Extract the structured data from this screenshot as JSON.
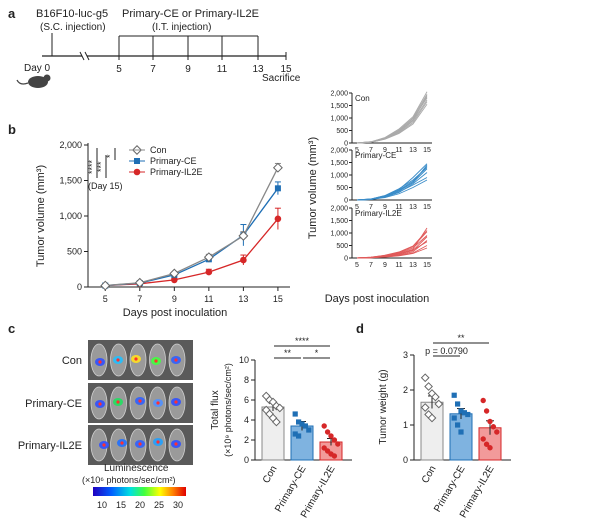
{
  "panels": {
    "a": "a",
    "b": "b",
    "c": "c",
    "d": "d"
  },
  "timeline": {
    "cells": "B16F10-luc-g5",
    "cells_note": "(S.C. injection)",
    "treatment": "Primary-CE or Primary-IL2E",
    "treatment_note": "(I.T. injection)",
    "day_label": "Day 0",
    "days": [
      "5",
      "7",
      "9",
      "11",
      "13",
      "15"
    ],
    "end_label": "Sacrifice"
  },
  "colors": {
    "con": "#888888",
    "ce": "#1f6fb5",
    "il2e": "#d62728",
    "ce_light": "#7fb3e0",
    "il2e_light": "#f29a9a"
  },
  "chart_data": [
    {
      "type": "line",
      "ylabel": "Tumor volume (mm³)",
      "xlabel": "Days post inoculation",
      "x": [
        5,
        7,
        9,
        11,
        13,
        15
      ],
      "ylim": [
        0,
        2000
      ],
      "yticks": [
        "0",
        "500",
        "1,000",
        "1,500",
        "2,000"
      ],
      "series": [
        {
          "name": "Con",
          "values": [
            20,
            60,
            190,
            420,
            720,
            1680
          ],
          "err": [
            5,
            10,
            20,
            40,
            60,
            60
          ]
        },
        {
          "name": "Primary-CE",
          "values": [
            20,
            55,
            170,
            390,
            730,
            1390
          ],
          "err": [
            5,
            10,
            20,
            40,
            150,
            90
          ]
        },
        {
          "name": "Primary-IL2E",
          "values": [
            20,
            45,
            100,
            210,
            380,
            960
          ],
          "err": [
            5,
            10,
            20,
            40,
            70,
            150
          ]
        }
      ],
      "stats": [
        "****",
        "***",
        "*"
      ],
      "stats_note": "(Day 15)",
      "legend": "top-left"
    },
    {
      "type": "line",
      "ylabel": "Tumor volume (mm³)",
      "xlabel": "Days post inoculation",
      "x": [
        5,
        7,
        9,
        11,
        13,
        15
      ],
      "xticks": [
        "5",
        "7",
        "9",
        "11",
        "13",
        "15"
      ],
      "ylim": [
        0,
        2000
      ],
      "yticks": [
        "0",
        "500",
        "1,000",
        "1,500",
        "2,000"
      ],
      "panels": [
        {
          "name": "Con",
          "lines": [
            [
              0,
              40,
              180,
              450,
              900,
              1900
            ],
            [
              0,
              50,
              220,
              560,
              1050,
              2050
            ],
            [
              0,
              30,
              160,
              400,
              820,
              1650
            ],
            [
              0,
              45,
              200,
              500,
              980,
              1800
            ],
            [
              0,
              35,
              150,
              380,
              760,
              1550
            ],
            [
              0,
              40,
              210,
              520,
              1000,
              1950
            ],
            [
              0,
              30,
              170,
              430,
              880,
              1720
            ],
            [
              0,
              50,
              190,
              470,
              930,
              1850
            ]
          ]
        },
        {
          "name": "Primary-CE",
          "lines": [
            [
              0,
              30,
              150,
              380,
              700,
              1400
            ],
            [
              0,
              40,
              180,
              450,
              800,
              1300
            ],
            [
              0,
              20,
              120,
              300,
              650,
              1100
            ],
            [
              0,
              35,
              160,
              420,
              900,
              1450
            ],
            [
              0,
              25,
              140,
              350,
              700,
              1250
            ],
            [
              0,
              30,
              130,
              320,
              600,
              900
            ],
            [
              0,
              40,
              170,
              400,
              750,
              1350
            ],
            [
              0,
              20,
              100,
              250,
              500,
              800
            ]
          ]
        },
        {
          "name": "Primary-IL2E",
          "lines": [
            [
              0,
              20,
              80,
              180,
              350,
              1200
            ],
            [
              0,
              30,
              100,
              220,
              450,
              1050
            ],
            [
              0,
              10,
              60,
              120,
              250,
              700
            ],
            [
              0,
              25,
              90,
              200,
              400,
              900
            ],
            [
              0,
              15,
              70,
              150,
              300,
              850
            ],
            [
              0,
              20,
              50,
              100,
              200,
              500
            ],
            [
              0,
              30,
              110,
              240,
              480,
              1100
            ],
            [
              0,
              10,
              40,
              90,
              180,
              400
            ],
            [
              0,
              20,
              70,
              160,
              320,
              650
            ]
          ]
        }
      ]
    },
    {
      "type": "bar",
      "ylabel": "Total flux",
      "ylabel2": "(×10⁹ photons/sec/cm²)",
      "categories": [
        "Con",
        "Primary-CE",
        "Primary-IL2E"
      ],
      "values": [
        5.3,
        3.4,
        1.8
      ],
      "err": [
        0.4,
        0.45,
        0.35
      ],
      "ylim": [
        0,
        10
      ],
      "yticks": [
        "0",
        "2",
        "4",
        "6",
        "8",
        "10"
      ],
      "points": [
        [
          6.4,
          6.0,
          5.8,
          5.4,
          5.2,
          5.0,
          4.6,
          4.2,
          3.8
        ],
        [
          4.6,
          3.8,
          3.6,
          3.4,
          3.0,
          2.6,
          2.4
        ],
        [
          3.4,
          2.8,
          2.4,
          2.0,
          1.6,
          1.2,
          0.9,
          0.6,
          0.4
        ]
      ],
      "stats": [
        {
          "label": "****",
          "from": 0,
          "to": 2
        },
        {
          "label": "**",
          "from": 0,
          "to": 1
        },
        {
          "label": "*",
          "from": 1,
          "to": 2
        }
      ]
    },
    {
      "type": "bar",
      "ylabel": "Tumor weight (g)",
      "categories": [
        "Con",
        "Primary-CE",
        "Primary-IL2E"
      ],
      "values": [
        1.65,
        1.32,
        0.92
      ],
      "err": [
        0.18,
        0.15,
        0.2
      ],
      "ylim": [
        0,
        3
      ],
      "yticks": [
        "0",
        "1",
        "2",
        "3"
      ],
      "points": [
        [
          2.35,
          2.1,
          1.9,
          1.8,
          1.6,
          1.5,
          1.3,
          1.2
        ],
        [
          1.85,
          1.6,
          1.4,
          1.35,
          1.3,
          1.2,
          1.0,
          0.8
        ],
        [
          1.7,
          1.4,
          1.1,
          0.95,
          0.8,
          0.6,
          0.45,
          0.35
        ]
      ],
      "stats": [
        {
          "label": "**",
          "from": 0,
          "to": 2
        },
        {
          "label": "p = 0.0790",
          "from": 0,
          "to": 1
        }
      ]
    }
  ],
  "imaging": {
    "rows": [
      "Con",
      "Primary-CE",
      "Primary-IL2E"
    ],
    "scale_title": "Luminescence",
    "scale_unit": "(×10⁶ photons/sec/cm²)",
    "scale_ticks": [
      "10",
      "15",
      "20",
      "25",
      "30"
    ]
  }
}
